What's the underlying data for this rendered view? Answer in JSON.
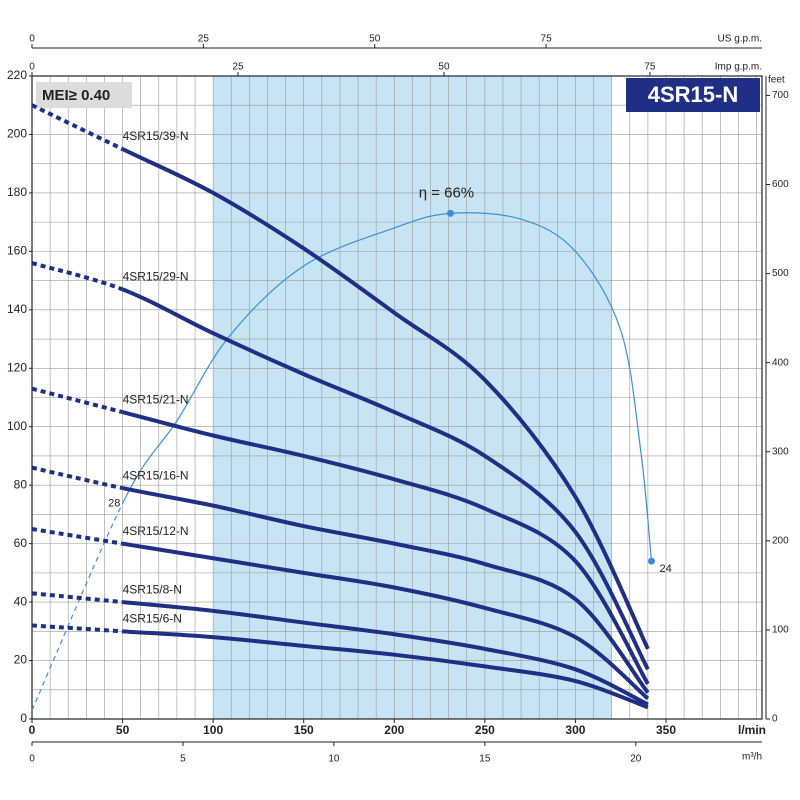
{
  "chart_data": {
    "type": "line",
    "badge": "MEI≥ 0.40",
    "title": "4SR15-N",
    "x_label": "l/min",
    "y2_label": "feet",
    "xlim": [
      0,
      403
    ],
    "xticks": [
      0,
      50,
      100,
      150,
      200,
      250,
      300,
      350
    ],
    "ylim": [
      0,
      220
    ],
    "yticks": [
      0,
      20,
      40,
      60,
      80,
      100,
      120,
      140,
      160,
      180,
      200,
      220
    ],
    "y2lim": [
      0,
      721.8
    ],
    "y2ticks": [
      0,
      100,
      200,
      300,
      400,
      500,
      600,
      700
    ],
    "grid": true,
    "x_grid_step": 10,
    "y_grid_step": 10,
    "shaded_range": [
      100,
      320
    ],
    "shade_color": "#c6e4f3",
    "extra_x_axes": [
      {
        "label": "US g.p.m.",
        "side": "top",
        "lim": [
          0,
          106.5
        ],
        "ticks": [
          0,
          25,
          50,
          75
        ]
      },
      {
        "label": "Imp g.p.m.",
        "side": "top",
        "lim": [
          0,
          88.6
        ],
        "ticks": [
          0,
          25,
          50,
          75
        ]
      },
      {
        "label": "m³/h",
        "side": "bottom",
        "lim": [
          0,
          24.18
        ],
        "ticks": [
          0,
          5,
          10,
          15,
          20
        ]
      }
    ],
    "x": [
      0,
      50,
      100,
      150,
      200,
      250,
      300,
      340
    ],
    "dashed_below_x": 50,
    "series": [
      {
        "name": "4SR15/39-N",
        "color": "#1f2f86",
        "values": [
          210,
          195,
          180,
          161,
          139,
          116,
          76,
          24
        ]
      },
      {
        "name": "4SR15/29-N",
        "color": "#1f2f86",
        "values": [
          156,
          147,
          132,
          118,
          105,
          90,
          64,
          17
        ]
      },
      {
        "name": "4SR15/21-N",
        "color": "#1f2f86",
        "values": [
          113,
          105,
          97,
          90,
          82,
          72,
          54,
          12
        ]
      },
      {
        "name": "4SR15/16-N",
        "color": "#1f2f86",
        "values": [
          86,
          79,
          73,
          66,
          60,
          53,
          41,
          9
        ]
      },
      {
        "name": "4SR15/12-N",
        "color": "#1f2f86",
        "values": [
          65,
          60,
          55,
          50,
          45,
          38,
          28,
          7
        ]
      },
      {
        "name": "4SR15/8-N",
        "color": "#1f2f86",
        "values": [
          43,
          40,
          37,
          33,
          29,
          24,
          17,
          5
        ]
      },
      {
        "name": "4SR15/6-N",
        "color": "#1f2f86",
        "values": [
          32,
          30,
          28,
          25,
          22,
          18,
          13,
          4
        ]
      }
    ],
    "efficiency": {
      "color": "#3b8fd9",
      "x": [
        0,
        51,
        80,
        109,
        150,
        200,
        231,
        270,
        300,
        325,
        336,
        342
      ],
      "values": [
        3,
        75,
        102,
        131,
        155,
        168,
        173,
        171,
        160,
        133,
        92,
        54
      ],
      "dashed_below_x": 51,
      "annotations": [
        {
          "text": "η = 66%",
          "x": 231,
          "y": 173,
          "dot": true
        },
        {
          "text": "28",
          "x": 51,
          "y": 75,
          "dot": false
        },
        {
          "text": "24",
          "x": 342,
          "y": 54,
          "dot": true
        }
      ]
    }
  }
}
